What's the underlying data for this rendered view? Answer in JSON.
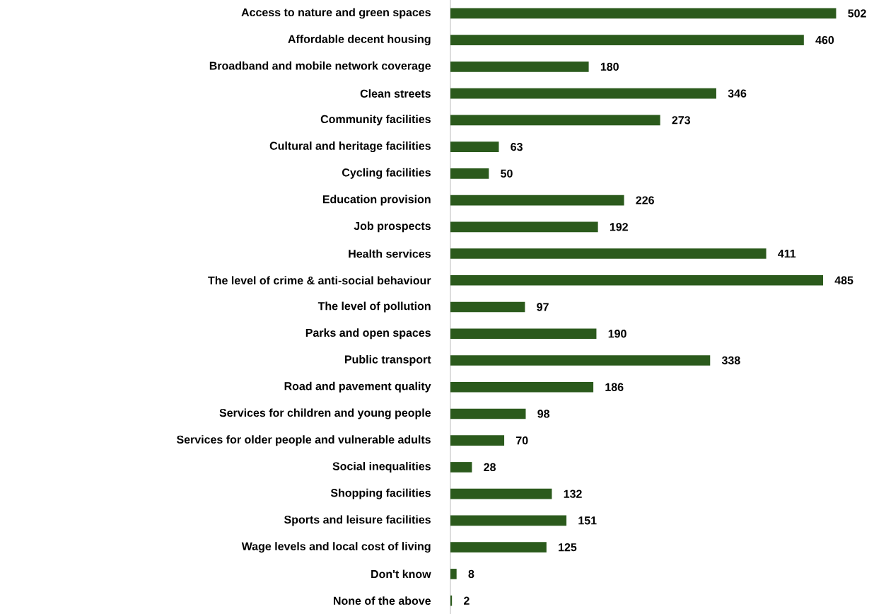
{
  "chart_data": {
    "type": "bar",
    "orientation": "horizontal",
    "color": "#2b5a1c",
    "data_labels": true,
    "categories": [
      "Access to nature and green spaces",
      "Affordable decent housing",
      "Broadband and mobile network coverage",
      "Clean streets",
      "Community facilities",
      "Cultural and heritage facilities",
      "Cycling facilities",
      "Education provision",
      "Job prospects",
      "Health services",
      "The level of crime & anti-social behaviour",
      "The level of pollution",
      "Parks and open spaces",
      "Public transport",
      "Road and pavement quality",
      "Services for children and young people",
      "Services for older people and vulnerable adults",
      "Social inequalities",
      "Shopping facilities",
      "Sports and leisure facilities",
      "Wage levels and local cost of living",
      "Don't know",
      "None of the above"
    ],
    "values": [
      502,
      460,
      180,
      346,
      273,
      63,
      50,
      226,
      192,
      411,
      485,
      97,
      190,
      338,
      186,
      98,
      70,
      28,
      132,
      151,
      125,
      8,
      2
    ]
  }
}
